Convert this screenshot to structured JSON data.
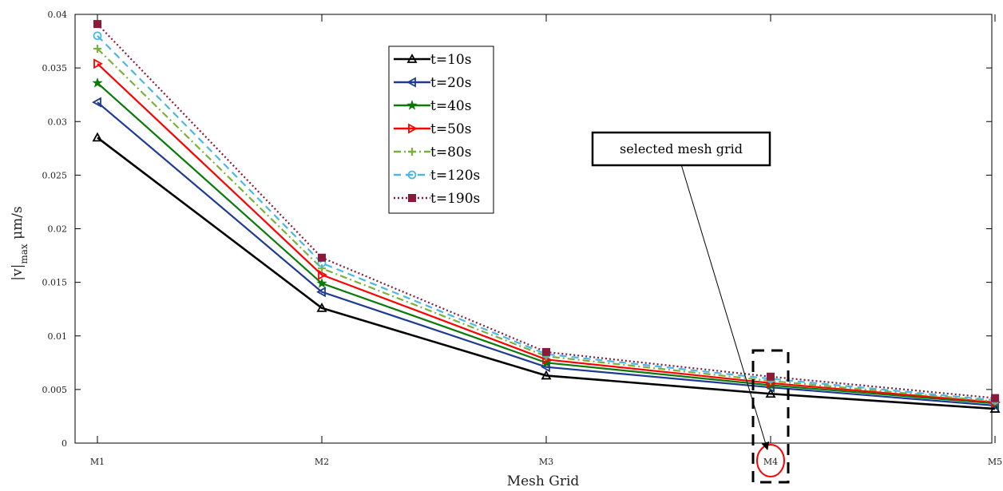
{
  "chart_data": {
    "type": "line",
    "xlabel": "Mesh Grid",
    "ylabel_base": "|v|",
    "ylabel_sub": "max",
    "ylabel_unit": " μm/s",
    "categories": [
      "M1",
      "M2",
      "M3",
      "M4",
      "M5"
    ],
    "ylim": [
      0,
      0.04
    ],
    "yticks": [
      0,
      0.005,
      0.01,
      0.015,
      0.02,
      0.025,
      0.03,
      0.035,
      0.04
    ],
    "ytick_labels": [
      "0",
      "0.005",
      "0.01",
      "0.015",
      "0.02",
      "0.025",
      "0.03",
      "0.035",
      "0.04"
    ],
    "grid": false,
    "legend_position": "upper-center",
    "series": [
      {
        "name": "t=10s",
        "color": "#000000",
        "dash": "solid",
        "marker": "triangle",
        "values": [
          0.0285,
          0.0126,
          0.0063,
          0.0046,
          0.0032
        ]
      },
      {
        "name": "t=20s",
        "color": "#1f3a93",
        "dash": "solid",
        "marker": "triangle-left",
        "values": [
          0.0318,
          0.0141,
          0.0071,
          0.0052,
          0.0035
        ]
      },
      {
        "name": "t=40s",
        "color": "#0a7a0a",
        "dash": "solid",
        "marker": "star",
        "values": [
          0.0336,
          0.0149,
          0.0075,
          0.0054,
          0.0037
        ]
      },
      {
        "name": "t=50s",
        "color": "#ff0000",
        "dash": "solid",
        "marker": "triangle-right",
        "values": [
          0.0354,
          0.0157,
          0.0078,
          0.0056,
          0.0038
        ]
      },
      {
        "name": "t=80s",
        "color": "#7ab13a",
        "dash": "dashdot",
        "marker": "plus",
        "values": [
          0.0368,
          0.0163,
          0.0081,
          0.0058,
          0.0039
        ]
      },
      {
        "name": "t=120s",
        "color": "#4ab8e6",
        "dash": "dashed",
        "marker": "circle",
        "values": [
          0.038,
          0.0168,
          0.0083,
          0.006,
          0.004
        ]
      },
      {
        "name": "t=190s",
        "color": "#8b1a3a",
        "dash": "dotted",
        "marker": "square",
        "values": [
          0.0391,
          0.0173,
          0.0085,
          0.0062,
          0.0042
        ]
      }
    ],
    "annotation": {
      "text": "selected mesh grid",
      "target_category": "M4",
      "box_color": "#000000",
      "circle_color": "#ff0000"
    }
  }
}
